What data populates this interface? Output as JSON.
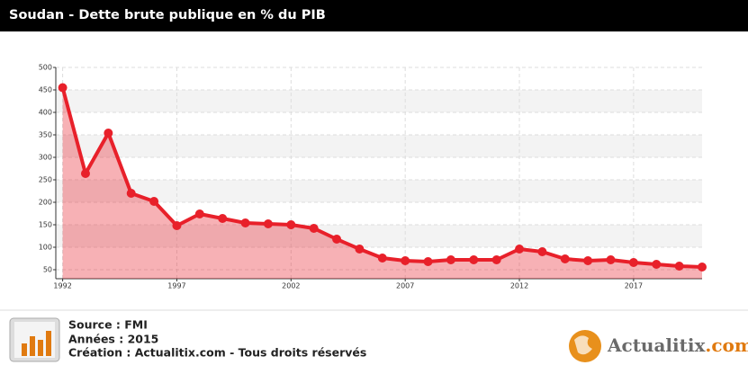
{
  "chart_data": {
    "type": "line",
    "title": "Soudan - Dette brute publique en % du PIB",
    "x": [
      1992,
      1993,
      1994,
      1995,
      1996,
      1997,
      1998,
      1999,
      2000,
      2001,
      2002,
      2003,
      2004,
      2005,
      2006,
      2007,
      2008,
      2009,
      2010,
      2011,
      2012,
      2013,
      2014,
      2015,
      2016,
      2017,
      2018,
      2019,
      2020
    ],
    "series": [
      {
        "color": "#e8202a",
        "values": [
          455,
          264,
          354,
          220,
          202,
          148,
          174,
          164,
          154,
          152,
          150,
          142,
          118,
          96,
          76,
          70,
          68,
          72,
          72,
          72,
          96,
          90,
          74,
          70,
          72,
          66,
          62,
          58,
          56
        ]
      }
    ],
    "xlim": [
      1991.7,
      2020
    ],
    "xticks": [
      1992,
      1997,
      2002,
      2007,
      2012,
      2017
    ],
    "ylim": [
      30,
      500
    ],
    "yticks": [
      50,
      100,
      150,
      200,
      250,
      300,
      350,
      400,
      450,
      500
    ],
    "grid": true
  },
  "footer": {
    "source": "Source : FMI",
    "years": "Années : 2015",
    "creation": "Création : Actualitix.com - Tous droits réservés",
    "logo_name": "Actualitix",
    "logo_suffix": ".com"
  }
}
